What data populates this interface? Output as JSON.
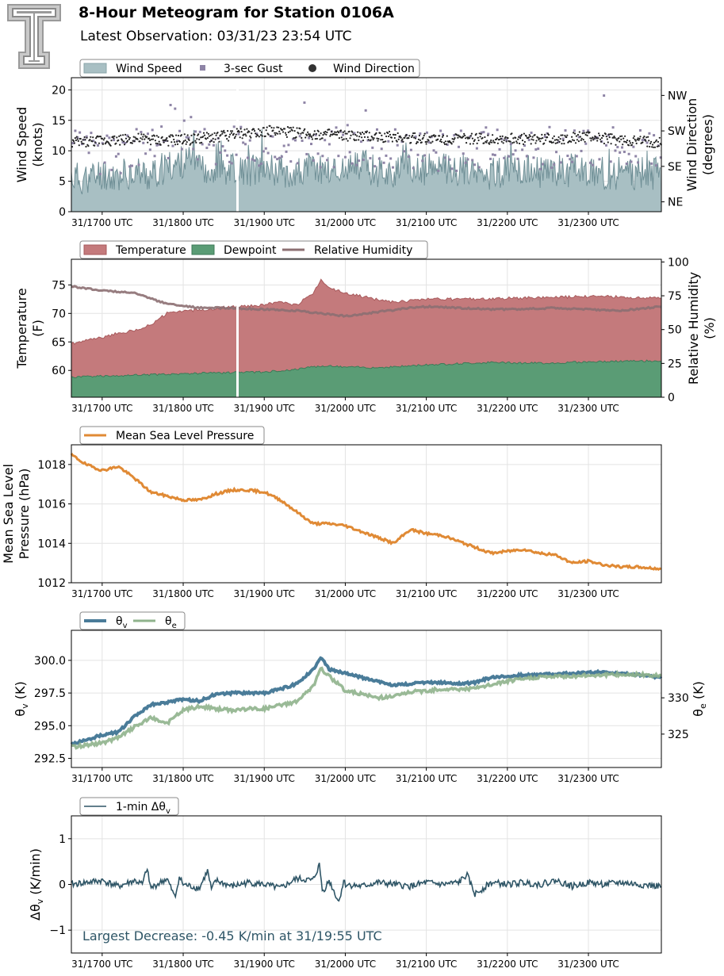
{
  "header": {
    "title": "8-Hour Meteogram for Station 0106A",
    "subtitle": "Latest Observation: 03/31/23 23:54 UTC",
    "logo_letter": "T"
  },
  "colors": {
    "wind_speed": "#a8bfc3",
    "wind_speed_line": "#6f8f96",
    "gust": "#8e84a6",
    "wind_dir": "#222222",
    "temperature": "#c47a7c",
    "temperature_line": "#a85a5c",
    "dewpoint": "#5a9c75",
    "dewpoint_line": "#3e7a58",
    "rh": "#8c6f72",
    "pressure": "#e08a35",
    "theta_v": "#4a7c99",
    "theta_e": "#8fb38c",
    "dtheta": "#2e5566",
    "annotation": "#2e5566"
  },
  "chart_data": [
    {
      "id": "wind",
      "type": "area",
      "legend": [
        "Wind Speed",
        "3-sec Gust",
        "Wind Direction"
      ],
      "ylabel": "Wind Speed",
      "ylabel_units": "(knots)",
      "y2label": "Wind Direction",
      "y2label_units": "(degrees)",
      "ylim": [
        0,
        22
      ],
      "yticks": [
        "0",
        "5",
        "10",
        "15",
        "20"
      ],
      "y2ticks": [
        "NE",
        "SE",
        "SW",
        "NW"
      ],
      "xticks": [
        "31/1700 UTC",
        "31/1800 UTC",
        "31/1900 UTC",
        "31/2000 UTC",
        "31/2100 UTC",
        "31/2200 UTC",
        "31/2300 UTC"
      ],
      "x_range_hours": [
        16.62,
        23.9
      ],
      "gap_hour": 18.67,
      "series": [
        {
          "name": "Wind Speed",
          "x": [
            16.6,
            16.8,
            17.0,
            17.2,
            17.4,
            17.6,
            17.8,
            18.0,
            18.2,
            18.4,
            18.6,
            18.8,
            19.0,
            19.2,
            19.4,
            19.6,
            19.8,
            20.0,
            20.2,
            20.4,
            20.6,
            20.8,
            21.0,
            21.2,
            21.4,
            21.6,
            21.8,
            22.0,
            22.2,
            22.4,
            22.6,
            22.8,
            23.0,
            23.2,
            23.4,
            23.6,
            23.9
          ],
          "values": [
            5.5,
            5.0,
            6.0,
            5.5,
            6.5,
            5.5,
            7.0,
            8.0,
            7.5,
            6.5,
            7.0,
            6.5,
            7.0,
            6.5,
            6.0,
            7.0,
            6.5,
            6.5,
            7.0,
            6.5,
            6.0,
            6.5,
            6.5,
            7.0,
            6.5,
            6.5,
            6.0,
            6.5,
            6.5,
            6.0,
            6.5,
            6.5,
            6.5,
            6.0,
            6.0,
            6.0,
            6.0
          ]
        },
        {
          "name": "3-sec Gust",
          "x": [
            16.6,
            17.0,
            17.4,
            17.8,
            18.0,
            18.2,
            18.6,
            19.0,
            19.4,
            19.8,
            20.2,
            20.6,
            21.0,
            21.4,
            21.8,
            22.2,
            22.6,
            23.0,
            23.4,
            23.9
          ],
          "values": [
            10.0,
            9.5,
            10.0,
            11.0,
            13.5,
            11.0,
            10.5,
            10.5,
            10.5,
            10.5,
            11.0,
            10.5,
            10.0,
            10.0,
            10.5,
            10.5,
            10.5,
            11.0,
            10.5,
            10.0
          ]
        },
        {
          "name": "Wind Direction",
          "x": [
            16.6,
            17.0,
            17.4,
            17.8,
            18.2,
            18.6,
            19.0,
            19.4,
            19.8,
            20.2,
            20.6,
            21.0,
            21.4,
            21.8,
            22.2,
            22.6,
            23.0,
            23.4,
            23.9
          ],
          "values": [
            195,
            200,
            205,
            200,
            205,
            215,
            225,
            220,
            215,
            210,
            210,
            205,
            205,
            205,
            205,
            205,
            210,
            200,
            195
          ]
        }
      ]
    },
    {
      "id": "temp",
      "type": "area",
      "legend": [
        "Temperature",
        "Dewpoint",
        "Relative Humidity"
      ],
      "ylabel": "Temperature",
      "ylabel_units": "(F)",
      "y2label": "Relative Humidity",
      "y2label_units": "(%)",
      "ylim": [
        55.3,
        79.5
      ],
      "y2lim": [
        0,
        102
      ],
      "yticks": [
        "60",
        "65",
        "70",
        "75"
      ],
      "y2ticks": [
        "0",
        "25",
        "50",
        "75",
        "100"
      ],
      "xticks": [
        "31/1700 UTC",
        "31/1800 UTC",
        "31/1900 UTC",
        "31/2000 UTC",
        "31/2100 UTC",
        "31/2200 UTC",
        "31/2300 UTC"
      ],
      "x_range_hours": [
        16.62,
        23.9
      ],
      "gap_hour": 18.67,
      "series": [
        {
          "name": "Temperature",
          "x": [
            16.6,
            16.8,
            17.0,
            17.2,
            17.4,
            17.6,
            17.8,
            18.0,
            18.2,
            18.4,
            18.6,
            18.8,
            19.0,
            19.2,
            19.4,
            19.6,
            19.7,
            19.8,
            20.0,
            20.2,
            20.4,
            20.6,
            20.8,
            21.0,
            21.4,
            21.8,
            22.2,
            22.6,
            23.0,
            23.4,
            23.9
          ],
          "values": [
            64.7,
            65.2,
            65.8,
            66.5,
            67.0,
            68.0,
            70.0,
            70.4,
            70.6,
            70.9,
            71.2,
            71.3,
            71.5,
            72.0,
            71.5,
            73.5,
            76.0,
            74.5,
            73.5,
            73.0,
            72.4,
            72.0,
            72.2,
            72.5,
            72.5,
            72.6,
            72.7,
            72.8,
            73.0,
            72.9,
            72.6
          ]
        },
        {
          "name": "Dewpoint",
          "x": [
            16.6,
            17.0,
            17.4,
            17.8,
            18.2,
            18.6,
            19.0,
            19.4,
            19.7,
            20.0,
            20.4,
            20.8,
            21.0,
            21.4,
            21.8,
            22.2,
            22.6,
            23.0,
            23.4,
            23.9
          ],
          "values": [
            58.8,
            59.0,
            59.2,
            59.3,
            59.5,
            59.6,
            59.7,
            60.2,
            60.8,
            60.6,
            60.5,
            60.8,
            61.0,
            61.2,
            61.4,
            61.3,
            61.3,
            61.5,
            61.6,
            61.7
          ]
        },
        {
          "name": "Relative Humidity",
          "x": [
            16.6,
            17.0,
            17.4,
            17.8,
            18.2,
            18.6,
            19.0,
            19.4,
            19.7,
            20.0,
            20.4,
            20.8,
            21.0,
            21.4,
            21.8,
            22.2,
            22.6,
            23.0,
            23.4,
            23.9
          ],
          "values": [
            82,
            79,
            77,
            69,
            66,
            66,
            65,
            64,
            62,
            60,
            63,
            66,
            67,
            66,
            65,
            65,
            66,
            65,
            64,
            67
          ]
        }
      ]
    },
    {
      "id": "pressure",
      "type": "line",
      "legend": [
        "Mean Sea Level Pressure"
      ],
      "ylabel": "Mean Sea Level",
      "ylabel_units": "Pressure (hPa)",
      "ylim": [
        1012.0,
        1019.0
      ],
      "yticks": [
        "1012",
        "1014",
        "1016",
        "1018"
      ],
      "xticks": [
        "31/1700 UTC",
        "31/1800 UTC",
        "31/1900 UTC",
        "31/2000 UTC",
        "31/2100 UTC",
        "31/2200 UTC",
        "31/2300 UTC"
      ],
      "x_range_hours": [
        16.62,
        23.9
      ],
      "series": [
        {
          "name": "Mean Sea Level Pressure",
          "x": [
            16.62,
            16.8,
            17.0,
            17.2,
            17.4,
            17.6,
            17.8,
            18.0,
            18.2,
            18.4,
            18.6,
            18.8,
            19.0,
            19.2,
            19.4,
            19.6,
            19.8,
            20.0,
            20.2,
            20.4,
            20.6,
            20.8,
            21.0,
            21.2,
            21.4,
            21.6,
            21.8,
            22.0,
            22.2,
            22.4,
            22.6,
            22.8,
            23.0,
            23.2,
            23.4,
            23.6,
            23.9
          ],
          "values": [
            1018.5,
            1018.0,
            1017.7,
            1017.9,
            1017.3,
            1016.6,
            1016.4,
            1016.2,
            1016.2,
            1016.5,
            1016.7,
            1016.7,
            1016.6,
            1016.2,
            1015.6,
            1015.0,
            1015.0,
            1014.9,
            1014.6,
            1014.3,
            1014.0,
            1014.7,
            1014.5,
            1014.4,
            1014.1,
            1013.8,
            1013.5,
            1013.6,
            1013.7,
            1013.5,
            1013.4,
            1013.0,
            1013.1,
            1012.9,
            1012.8,
            1012.8,
            1012.7
          ]
        }
      ]
    },
    {
      "id": "theta",
      "type": "line",
      "legend": [
        "θv",
        "θe"
      ],
      "ylabel": "θv (K)",
      "y2label": "θe (K)",
      "ylim": [
        291.8,
        302.3
      ],
      "y2lim": [
        320.4,
        339.3
      ],
      "yticks": [
        "292.5",
        "295.0",
        "297.5",
        "300.0"
      ],
      "y2ticks": [
        "325",
        "330"
      ],
      "xticks": [
        "31/1700 UTC",
        "31/1800 UTC",
        "31/1900 UTC",
        "31/2000 UTC",
        "31/2100 UTC",
        "31/2200 UTC",
        "31/2300 UTC"
      ],
      "x_range_hours": [
        16.62,
        23.9
      ],
      "series": [
        {
          "name": "θv",
          "x": [
            16.62,
            16.8,
            17.0,
            17.2,
            17.4,
            17.6,
            17.8,
            18.0,
            18.2,
            18.4,
            18.6,
            18.8,
            19.0,
            19.2,
            19.4,
            19.6,
            19.7,
            19.8,
            20.0,
            20.2,
            20.4,
            20.6,
            20.8,
            21.0,
            21.2,
            21.4,
            21.6,
            21.8,
            22.0,
            22.4,
            22.8,
            23.2,
            23.6,
            23.9
          ],
          "values": [
            293.6,
            293.9,
            294.3,
            294.5,
            295.7,
            296.6,
            296.8,
            297.0,
            296.9,
            297.4,
            297.5,
            297.5,
            297.5,
            297.8,
            298.2,
            299.3,
            300.2,
            299.3,
            299.0,
            298.7,
            298.4,
            298.1,
            298.2,
            298.3,
            298.3,
            298.2,
            298.3,
            298.7,
            298.8,
            298.9,
            299.0,
            299.1,
            298.9,
            298.7
          ]
        },
        {
          "name": "θe",
          "x": [
            16.62,
            16.8,
            17.0,
            17.2,
            17.4,
            17.6,
            17.8,
            18.0,
            18.2,
            18.4,
            18.6,
            18.8,
            19.0,
            19.2,
            19.4,
            19.6,
            19.7,
            19.8,
            20.0,
            20.2,
            20.4,
            20.6,
            20.8,
            21.0,
            21.2,
            21.4,
            21.6,
            21.8,
            22.0,
            22.4,
            22.8,
            23.2,
            23.6,
            23.9
          ],
          "values": [
            323.2,
            323.5,
            323.8,
            324.5,
            326.0,
            327.2,
            326.5,
            328.3,
            328.8,
            328.5,
            328.3,
            328.5,
            328.5,
            329.0,
            329.5,
            331.5,
            334.0,
            333.0,
            331.0,
            330.5,
            330.0,
            330.2,
            330.8,
            331.0,
            331.2,
            331.2,
            331.3,
            331.8,
            332.3,
            332.9,
            333.0,
            333.2,
            333.2,
            333.0
          ]
        }
      ]
    },
    {
      "id": "dtheta",
      "type": "line",
      "legend": [
        "1-min Δθv"
      ],
      "ylabel": "Δθv (K/min)",
      "ylim": [
        -1.5,
        1.5
      ],
      "yticks": [
        "−1",
        "0",
        "1"
      ],
      "xticks": [
        "31/1700 UTC",
        "31/1800 UTC",
        "31/1900 UTC",
        "31/2000 UTC",
        "31/2100 UTC",
        "31/2200 UTC",
        "31/2300 UTC"
      ],
      "x_range_hours": [
        16.62,
        23.9
      ],
      "annotation": "Largest Decrease: -0.45 K/min at 31/19:55 UTC",
      "series": [
        {
          "name": "1-min Δθv",
          "x": [
            16.62,
            16.8,
            17.0,
            17.2,
            17.4,
            17.5,
            17.55,
            17.6,
            17.8,
            17.9,
            17.95,
            18.0,
            18.2,
            18.3,
            18.35,
            18.4,
            18.6,
            18.8,
            19.0,
            19.2,
            19.4,
            19.6,
            19.68,
            19.72,
            19.8,
            19.92,
            19.98,
            20.0,
            20.2,
            20.4,
            20.6,
            20.8,
            21.0,
            21.2,
            21.4,
            21.5,
            21.6,
            21.8,
            22.0,
            22.2,
            22.4,
            22.6,
            22.8,
            23.0,
            23.2,
            23.4,
            23.6,
            23.9
          ],
          "values": [
            0.0,
            0.05,
            0.1,
            -0.05,
            0.1,
            0.0,
            0.42,
            -0.1,
            0.15,
            -0.35,
            0.2,
            0.0,
            -0.1,
            0.35,
            -0.15,
            0.1,
            -0.05,
            0.05,
            0.0,
            -0.1,
            0.15,
            0.1,
            0.5,
            -0.2,
            0.1,
            -0.45,
            0.1,
            0.0,
            -0.05,
            0.05,
            0.0,
            -0.05,
            0.05,
            0.0,
            0.05,
            0.25,
            -0.25,
            0.05,
            0.0,
            0.05,
            0.0,
            0.1,
            -0.05,
            0.05,
            0.0,
            0.05,
            0.0,
            -0.05
          ]
        }
      ]
    }
  ]
}
